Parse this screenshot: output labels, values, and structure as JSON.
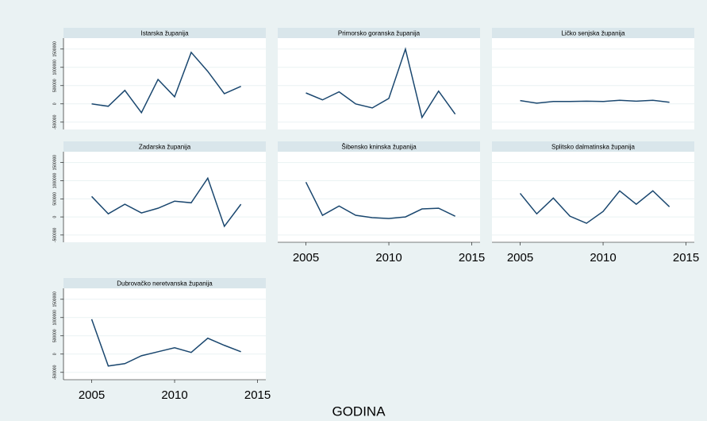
{
  "chart_data": [
    {
      "type": "line",
      "title": "Istarska županija",
      "x": [
        2005,
        2006,
        2007,
        2008,
        2009,
        2010,
        2011,
        2012,
        2013,
        2014
      ],
      "values": [
        0,
        -65000,
        370000,
        -240000,
        670000,
        195000,
        1410000,
        890000,
        280000,
        480000
      ],
      "color": "#1a476f",
      "xlim": [
        2003.3,
        2015.5
      ],
      "ylim": [
        -700000,
        1800000
      ],
      "yticks": [
        -500000,
        0,
        500000,
        1000000,
        1500000
      ],
      "grid": true
    },
    {
      "type": "line",
      "title": "Primorsko goranska županija",
      "x": [
        2005,
        2006,
        2007,
        2008,
        2009,
        2010,
        2011,
        2012,
        2013,
        2014
      ],
      "values": [
        300000,
        110000,
        330000,
        0,
        -110000,
        150000,
        1500000,
        -370000,
        350000,
        -280000
      ],
      "color": "#1a476f",
      "xlim": [
        2003.3,
        2015.5
      ],
      "ylim": [
        -700000,
        1800000
      ],
      "yticks": [
        -500000,
        0,
        500000,
        1000000,
        1500000
      ],
      "grid": true
    },
    {
      "type": "line",
      "title": "Ličko senjska županija",
      "x": [
        2005,
        2006,
        2007,
        2008,
        2009,
        2010,
        2011,
        2012,
        2013,
        2014
      ],
      "values": [
        90000,
        20000,
        65000,
        65000,
        75000,
        65000,
        100000,
        75000,
        100000,
        45000
      ],
      "color": "#1a476f",
      "xlim": [
        2003.3,
        2015.5
      ],
      "ylim": [
        -700000,
        1800000
      ],
      "yticks": [
        -500000,
        0,
        500000,
        1000000,
        1500000
      ],
      "grid": true
    },
    {
      "type": "line",
      "title": "Zadarska županija",
      "x": [
        2005,
        2006,
        2007,
        2008,
        2009,
        2010,
        2011,
        2012,
        2013,
        2014
      ],
      "values": [
        565000,
        85000,
        350000,
        110000,
        240000,
        435000,
        390000,
        1070000,
        -260000,
        350000
      ],
      "color": "#1a476f",
      "xlim": [
        2003.3,
        2015.5
      ],
      "ylim": [
        -700000,
        1800000
      ],
      "yticks": [
        -500000,
        0,
        500000,
        1000000,
        1500000
      ],
      "grid": true
    },
    {
      "type": "line",
      "title": "Šibensko kninska županija",
      "x": [
        2005,
        2006,
        2007,
        2008,
        2009,
        2010,
        2011,
        2012,
        2013,
        2014
      ],
      "values": [
        960000,
        45000,
        300000,
        45000,
        -20000,
        -45000,
        0,
        220000,
        240000,
        20000
      ],
      "color": "#1a476f",
      "xlim": [
        2003.3,
        2015.5
      ],
      "xticks": [
        2005,
        2010,
        2015
      ],
      "ylim": [
        -700000,
        1800000
      ],
      "yticks": [
        -500000,
        0,
        500000,
        1000000,
        1500000
      ],
      "grid": true
    },
    {
      "type": "line",
      "title": "Splitsko dalmatinska županija",
      "x": [
        2005,
        2006,
        2007,
        2008,
        2009,
        2010,
        2011,
        2012,
        2013,
        2014
      ],
      "values": [
        650000,
        85000,
        520000,
        20000,
        -175000,
        150000,
        720000,
        350000,
        720000,
        280000
      ],
      "color": "#1a476f",
      "xlim": [
        2003.3,
        2015.5
      ],
      "xticks": [
        2005,
        2010,
        2015
      ],
      "ylim": [
        -700000,
        1800000
      ],
      "yticks": [
        -500000,
        0,
        500000,
        1000000,
        1500000
      ],
      "grid": true
    },
    {
      "type": "line",
      "title": "Dubrovačko neretvanska županija",
      "x": [
        2005,
        2006,
        2007,
        2008,
        2009,
        2010,
        2011,
        2012,
        2013,
        2014
      ],
      "values": [
        955000,
        -325000,
        -260000,
        -45000,
        65000,
        175000,
        45000,
        435000,
        240000,
        65000
      ],
      "color": "#1a476f",
      "xlim": [
        2003.3,
        2015.5
      ],
      "xticks": [
        2005,
        2010,
        2015
      ],
      "ylim": [
        -700000,
        1800000
      ],
      "yticks": [
        -500000,
        0,
        500000,
        1000000,
        1500000
      ],
      "grid": true
    }
  ],
  "xlabel": "GODINA"
}
